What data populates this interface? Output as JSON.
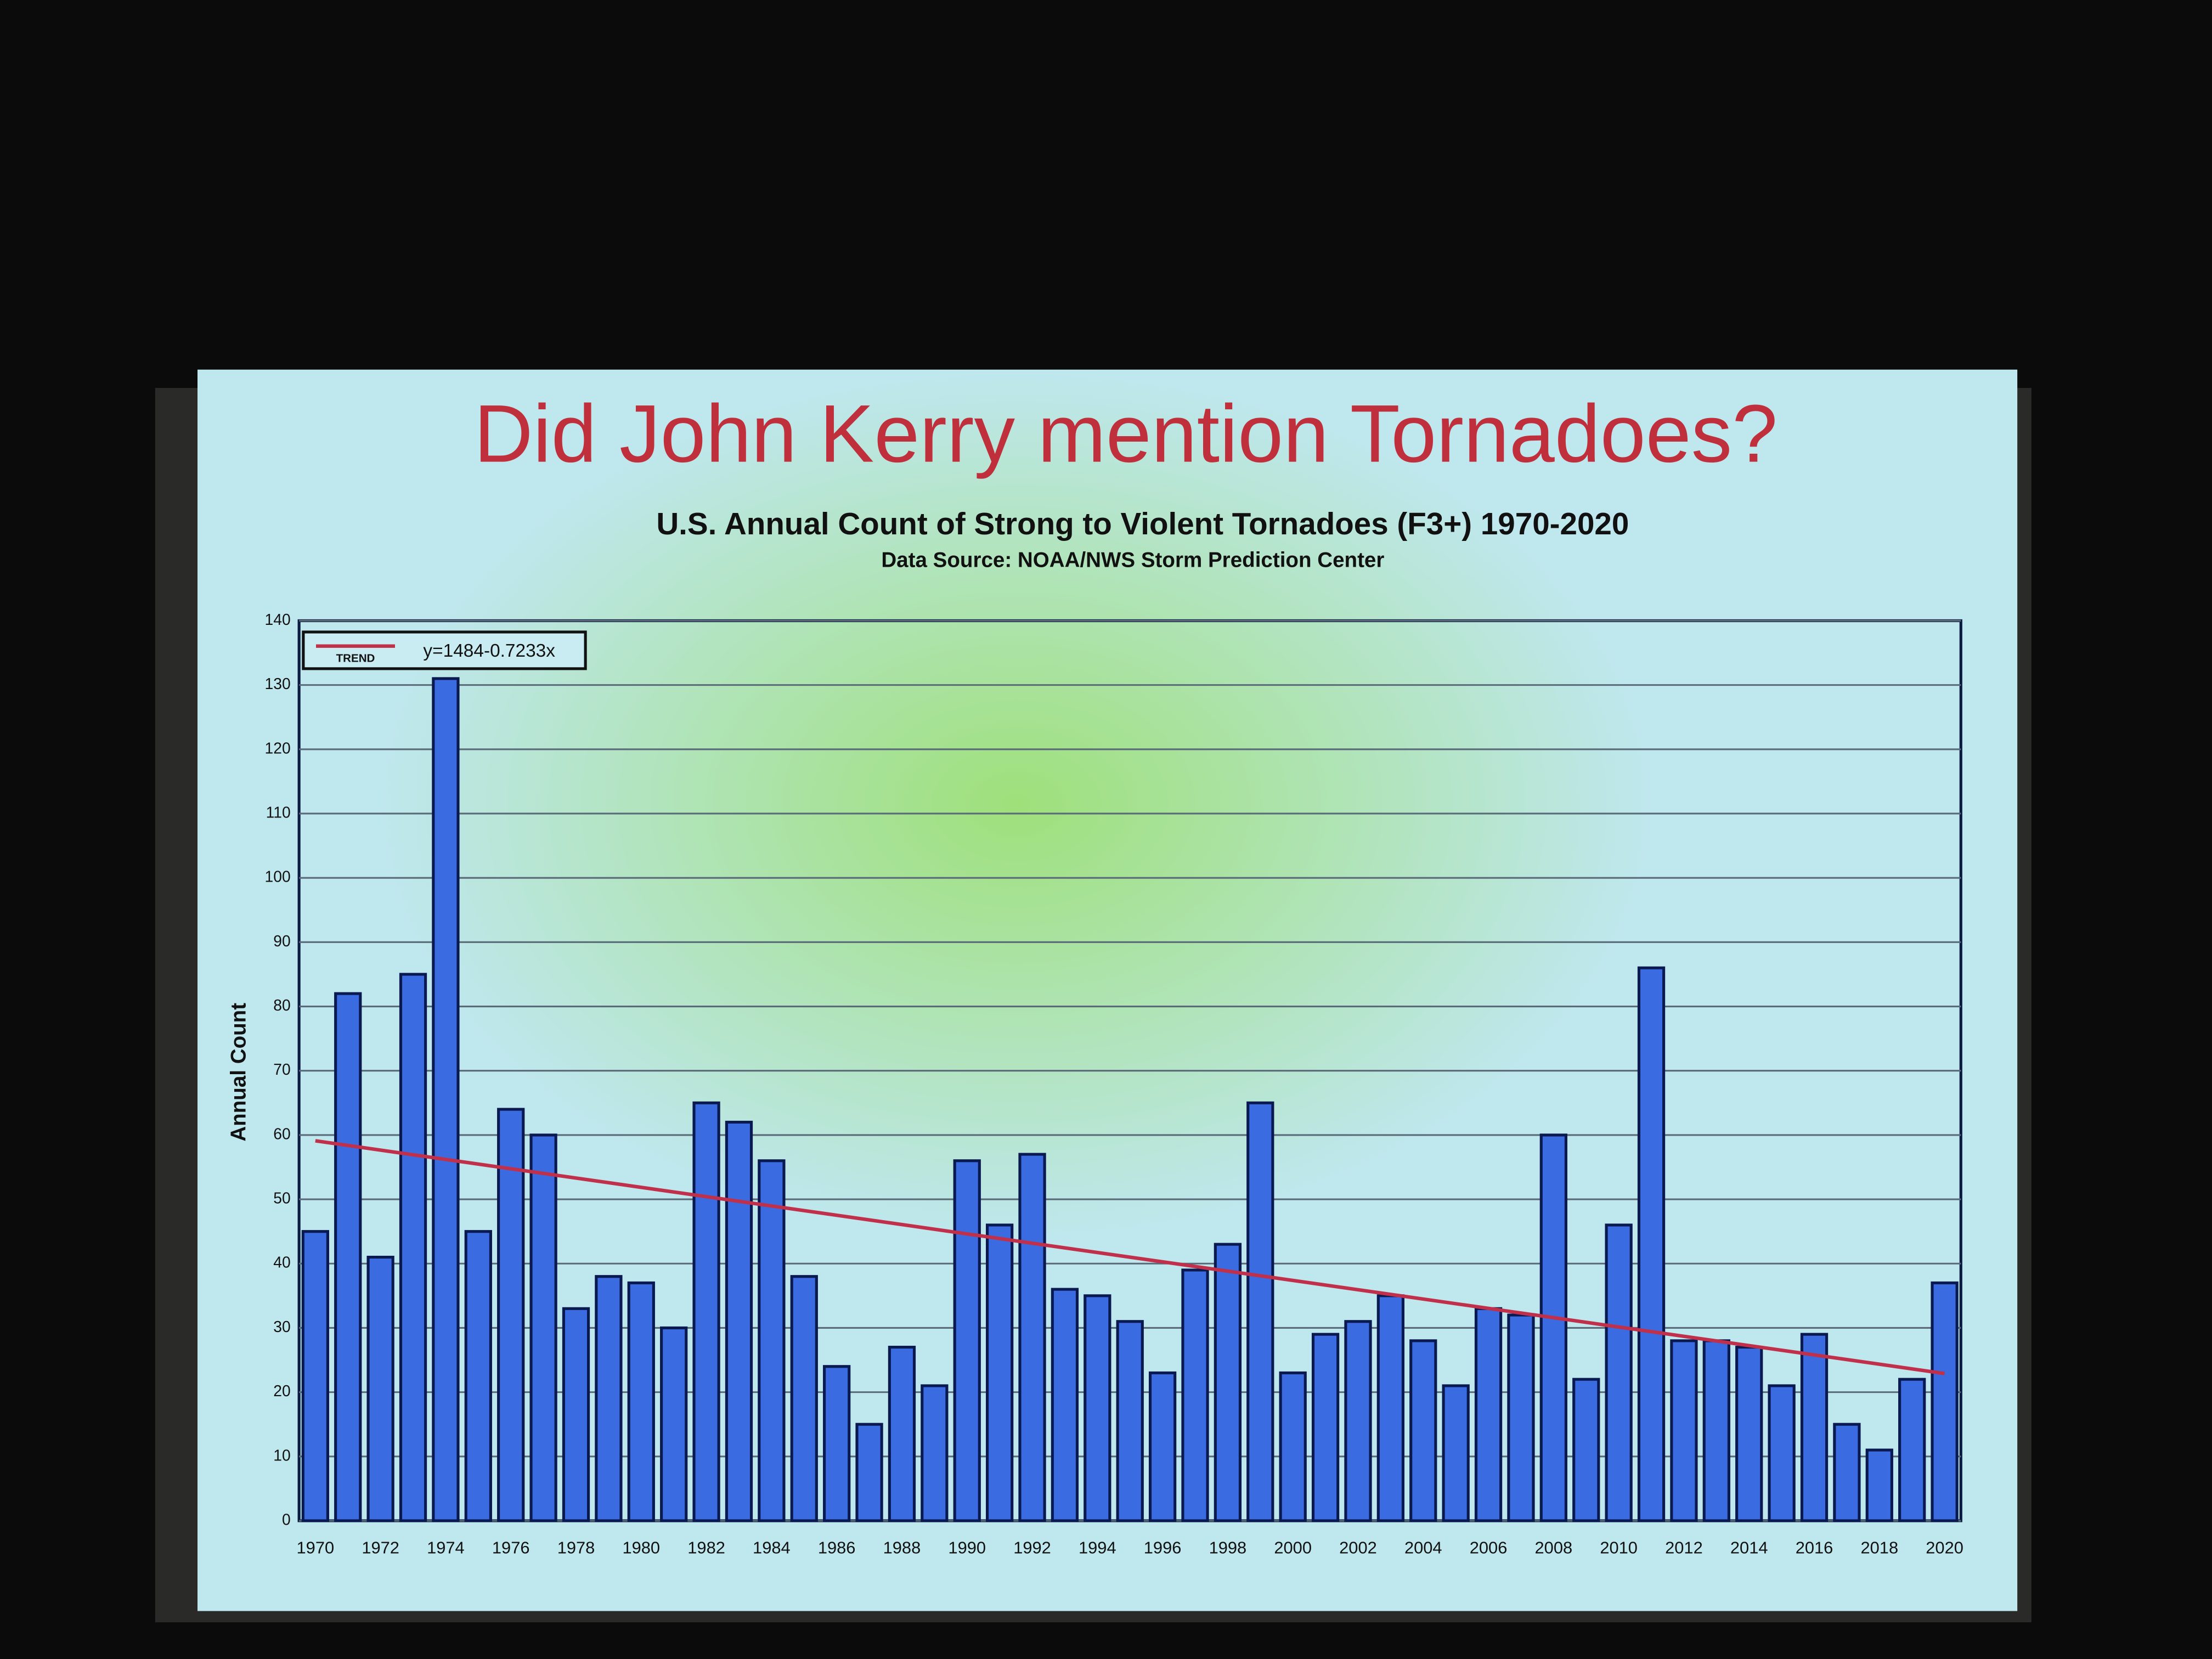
{
  "chart_data": {
    "type": "bar",
    "slide_title": "Did John Kerry mention Tornadoes?",
    "title": "U.S. Annual Count of Strong to Violent Tornadoes (F3+) 1970-2020",
    "subtitle": "Data Source: NOAA/NWS Storm Prediction Center",
    "y_label": "Annual Count",
    "categories": [
      "1970",
      null,
      "1972",
      null,
      "1974",
      null,
      "1976",
      null,
      "1978",
      null,
      "1980",
      null,
      "1982",
      null,
      "1984",
      null,
      "1986",
      null,
      "1988",
      null,
      "1990",
      null,
      "1992",
      null,
      "1994",
      null,
      "1996",
      null,
      "1998",
      null,
      "2000",
      null,
      "2002",
      null,
      "2004",
      null,
      "2006",
      null,
      "2008",
      null,
      "2010",
      null,
      "2012",
      null,
      "2014",
      null,
      "2016",
      null,
      "2018",
      null,
      "2020"
    ],
    "values": [
      45,
      82,
      41,
      85,
      131,
      45,
      64,
      60,
      33,
      38,
      37,
      30,
      65,
      62,
      56,
      38,
      24,
      15,
      27,
      21,
      56,
      46,
      57,
      36,
      35,
      31,
      23,
      39,
      43,
      65,
      23,
      29,
      31,
      35,
      28,
      21,
      33,
      32,
      60,
      22,
      46,
      86,
      28,
      28,
      27,
      21,
      29,
      15,
      11,
      22,
      37
    ],
    "color": "#3b6be0",
    "ylim": [
      0,
      140
    ],
    "yticks": [
      0,
      10,
      20,
      30,
      40,
      50,
      60,
      70,
      80,
      90,
      100,
      110,
      120,
      130,
      140
    ],
    "grid": true,
    "trend": {
      "name": "TREND",
      "label": "y=1484-0.7233x",
      "x": [
        1970,
        2020
      ],
      "values": [
        59.1,
        22.9
      ],
      "color": "#c0304a"
    }
  }
}
